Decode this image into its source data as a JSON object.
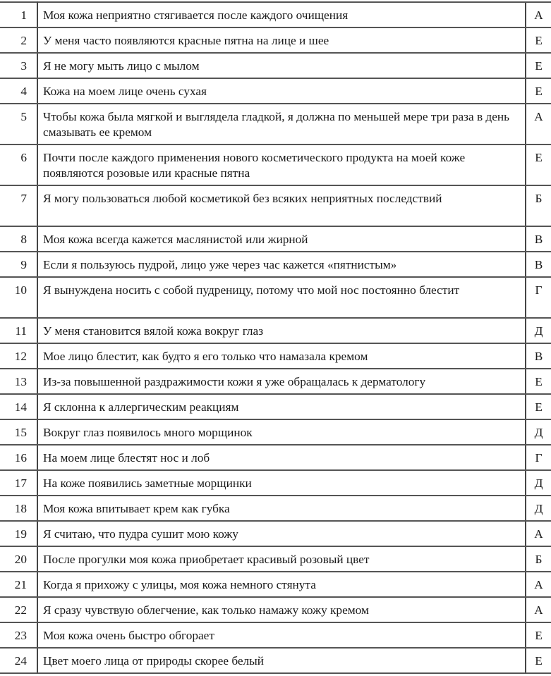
{
  "rows": [
    {
      "n": "1",
      "text": "Моя кожа неприятно стягивается после каждого очищения",
      "type": "А"
    },
    {
      "n": "2",
      "text": "У меня часто появляются красные пятна на лице и шее",
      "type": "Е"
    },
    {
      "n": "3",
      "text": "Я не могу мыть лицо с мылом",
      "type": "Е"
    },
    {
      "n": "4",
      "text": "Кожа на моем лице очень сухая",
      "type": "Е"
    },
    {
      "n": "5",
      "text": "Чтобы кожа была мягкой и выглядела гладкой, я должна по меньшей мере три раза в день смазывать ее кремом",
      "type": "А"
    },
    {
      "n": "6",
      "text": "Почти после каждого применения нового косметического продукта на моей коже появляются розовые или красные пятна",
      "type": "Е"
    },
    {
      "n": "7",
      "text": "Я могу пользоваться любой косметикой без всяких неприятных последствий",
      "type": "Б"
    },
    {
      "n": "8",
      "text": "Моя кожа всегда кажется маслянистой или жирной",
      "type": "В"
    },
    {
      "n": "9",
      "text": "Если я пользуюсь пудрой, лицо уже через час кажется «пятнистым»",
      "type": "В"
    },
    {
      "n": "10",
      "text": "Я вынуждена носить с собой пудреницу, потому что мой нос постоянно блестит",
      "type": "Г"
    },
    {
      "n": "11",
      "text": "У меня становится вялой кожа вокруг глаз",
      "type": "Д"
    },
    {
      "n": "12",
      "text": "Мое лицо блестит, как будто я его только что намазала кремом",
      "type": "В"
    },
    {
      "n": "13",
      "text": "Из-за повышенной раздражимости кожи я уже обращалась к дерматологу",
      "type": "Е"
    },
    {
      "n": "14",
      "text": "Я склонна к аллергическим реакциям",
      "type": "Е"
    },
    {
      "n": "15",
      "text": "Вокруг глаз появилось много морщинок",
      "type": "Д"
    },
    {
      "n": "16",
      "text": "На моем лице блестят нос и лоб",
      "type": "Г"
    },
    {
      "n": "17",
      "text": "На коже появились заметные морщинки",
      "type": "Д"
    },
    {
      "n": "18",
      "text": "Моя кожа впитывает крем как губка",
      "type": "Д"
    },
    {
      "n": "19",
      "text": "Я считаю, что пудра сушит мою кожу",
      "type": "А"
    },
    {
      "n": "20",
      "text": "После прогулки моя кожа приобретает красивый розовый цвет",
      "type": "Б"
    },
    {
      "n": "21",
      "text": "Когда я прихожу с улицы, моя кожа немного стянута",
      "type": "А"
    },
    {
      "n": "22",
      "text": "Я сразу чувствую облегчение, как только намажу кожу кремом",
      "type": "А"
    },
    {
      "n": "23",
      "text": "Моя кожа очень быстро обгорает",
      "type": "Е"
    },
    {
      "n": "24",
      "text": "Цвет моего лица от природы скорее белый",
      "type": "Е"
    }
  ]
}
